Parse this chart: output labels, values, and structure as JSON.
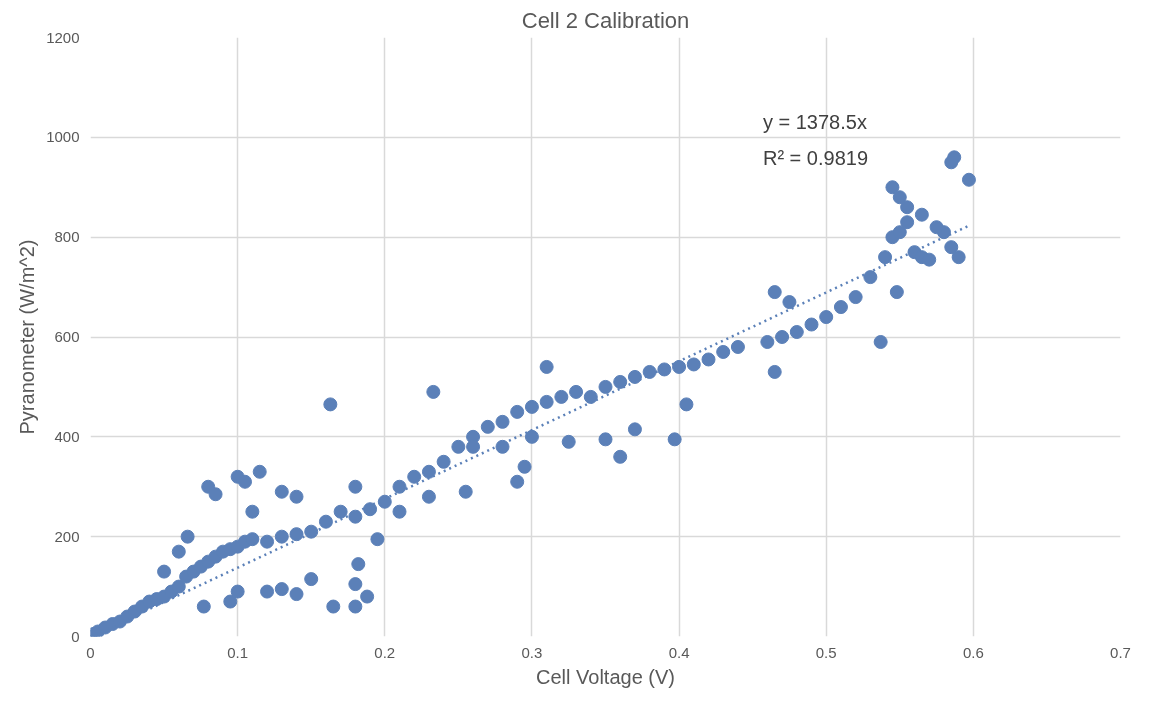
{
  "chart_data": {
    "type": "scatter",
    "title": "Cell 2 Calibration",
    "xlabel": "Cell Voltage (V)",
    "ylabel": "Pyranometer (W/m^2)",
    "xlim": [
      0,
      0.7
    ],
    "xticks": [
      0,
      0.1,
      0.2,
      0.3,
      0.4,
      0.5,
      0.6,
      0.7
    ],
    "ylim": [
      0,
      1200
    ],
    "yticks": [
      0,
      200,
      400,
      600,
      800,
      1000,
      1200
    ],
    "grid": true,
    "annotations": [
      "y = 1378.5x",
      "R² = 0.9819"
    ],
    "series": [
      {
        "marker": "circle",
        "color": "#5b80b8",
        "x": [
          0,
          0.002,
          0.005,
          0.01,
          0.015,
          0.02,
          0.025,
          0.03,
          0.035,
          0.04,
          0.045,
          0.05,
          0.055,
          0.06,
          0.065,
          0.07,
          0.075,
          0.08,
          0.085,
          0.09,
          0.095,
          0.1,
          0.105,
          0.11,
          0.12,
          0.13,
          0.14,
          0.15,
          0.16,
          0.17,
          0.18,
          0.19,
          0.2,
          0.21,
          0.22,
          0.23,
          0.24,
          0.25,
          0.26,
          0.27,
          0.28,
          0.29,
          0.3,
          0.31,
          0.32,
          0.33,
          0.34,
          0.35,
          0.36,
          0.37,
          0.38,
          0.39,
          0.4,
          0.41,
          0.42,
          0.43,
          0.44,
          0.46,
          0.47,
          0.48,
          0.49,
          0.5,
          0.51,
          0.52,
          0.53,
          0.54,
          0.545,
          0.55,
          0.555,
          0.56,
          0.565,
          0.57,
          0.58,
          0.585,
          0.59,
          0.597,
          0.587,
          0.585,
          0.08,
          0.085,
          0.1,
          0.105,
          0.115,
          0.13,
          0.14,
          0.163,
          0.165,
          0.18,
          0.18,
          0.182,
          0.18,
          0.188,
          0.195,
          0.077,
          0.095,
          0.1,
          0.12,
          0.13,
          0.14,
          0.15,
          0.233,
          0.255,
          0.29,
          0.295,
          0.31,
          0.325,
          0.35,
          0.36,
          0.37,
          0.397,
          0.405,
          0.465,
          0.465,
          0.475,
          0.537,
          0.545,
          0.55,
          0.548,
          0.555,
          0.565,
          0.575,
          0.28,
          0.3,
          0.26,
          0.23,
          0.21,
          0.066,
          0.06,
          0.05,
          0.11
        ],
        "values": [
          0,
          5,
          10,
          18,
          25,
          30,
          40,
          50,
          60,
          70,
          75,
          80,
          90,
          100,
          120,
          130,
          140,
          150,
          160,
          170,
          175,
          180,
          190,
          195,
          190,
          200,
          205,
          210,
          230,
          250,
          240,
          255,
          270,
          300,
          320,
          330,
          350,
          380,
          400,
          420,
          430,
          450,
          460,
          470,
          480,
          490,
          480,
          500,
          510,
          520,
          530,
          535,
          540,
          545,
          555,
          570,
          580,
          590,
          600,
          610,
          625,
          640,
          660,
          680,
          720,
          760,
          800,
          810,
          830,
          770,
          760,
          755,
          810,
          780,
          760,
          915,
          960,
          950,
          300,
          285,
          320,
          310,
          330,
          290,
          280,
          465,
          60,
          300,
          60,
          145,
          105,
          80,
          195,
          60,
          70,
          90,
          90,
          95,
          85,
          115,
          490,
          290,
          310,
          340,
          540,
          390,
          395,
          360,
          415,
          395,
          465,
          530,
          690,
          670,
          590,
          900,
          880,
          690,
          860,
          845,
          820,
          380,
          400,
          380,
          280,
          250,
          200,
          170,
          130,
          250
        ]
      },
      {
        "type": "line",
        "color": "#5b80b8",
        "line_style": "dotted",
        "x": [
          0,
          0.597
        ],
        "values": [
          0,
          823
        ]
      }
    ]
  }
}
